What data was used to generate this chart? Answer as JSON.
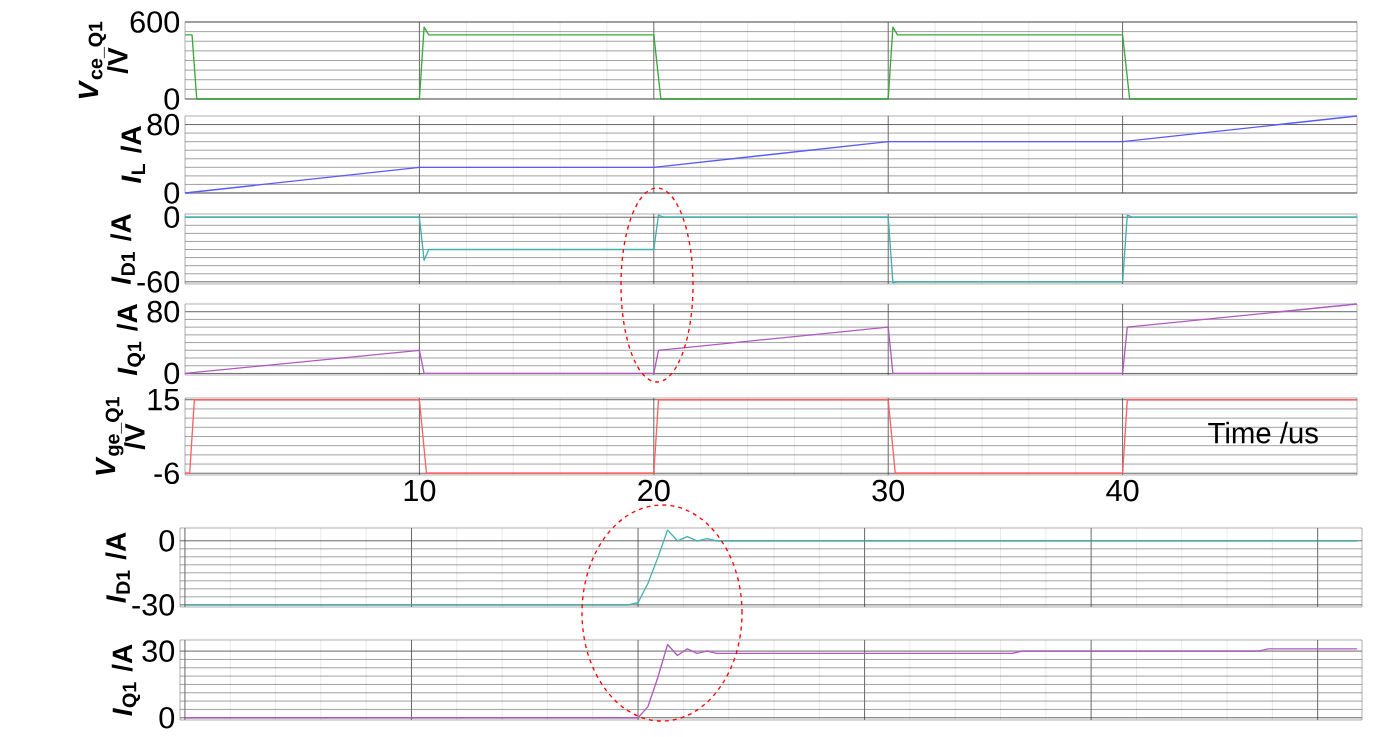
{
  "chart_data": [
    {
      "type": "line",
      "ylabel": "*V*$_{ce_Q1}$ /V",
      "xlim": [
        0,
        50
      ],
      "xticks": [
        10,
        20,
        30,
        40
      ],
      "ylim": [
        0,
        600
      ],
      "yticks": [
        0,
        600
      ],
      "tick_labels": "y",
      "grid": true,
      "series": [
        {
          "color": "#3aa83a",
          "x": [
            0,
            0.3,
            0.5,
            10,
            10.2,
            10.4,
            20,
            20.3,
            30,
            30.2,
            30.4,
            40,
            40.3,
            50
          ],
          "values": [
            500,
            500,
            0,
            0,
            560,
            500,
            500,
            0,
            0,
            560,
            500,
            500,
            0,
            0
          ]
        }
      ]
    },
    {
      "type": "line",
      "ylabel": "*I*$_{L}$ /A",
      "xlim": [
        0,
        50
      ],
      "xticks": [
        10,
        20,
        30,
        40
      ],
      "ylim": [
        0,
        90
      ],
      "yticks": [
        0,
        80
      ],
      "tick_labels": "y",
      "grid": true,
      "series": [
        {
          "color": "#5a5aff",
          "x": [
            0,
            10,
            20,
            30,
            40,
            50
          ],
          "values": [
            0,
            30,
            30,
            60,
            60,
            90
          ]
        }
      ]
    },
    {
      "type": "line",
      "ylabel": "*I*$_{D1}$ /A",
      "xlim": [
        0,
        50
      ],
      "xticks": [
        10,
        20,
        30,
        40
      ],
      "ylim": [
        -62,
        3
      ],
      "yticks": [
        -60,
        0
      ],
      "tick_labels": "y",
      "grid": true,
      "series": [
        {
          "color": "#40b0b0",
          "x": [
            0,
            10,
            10.2,
            10.4,
            20,
            20.2,
            20.4,
            30,
            30.2,
            30.4,
            40,
            40.2,
            40.4,
            50
          ],
          "values": [
            0,
            0,
            -40,
            -30,
            -30,
            2,
            0,
            0,
            -61,
            -60,
            -60,
            2,
            0,
            0
          ]
        }
      ]
    },
    {
      "type": "line",
      "ylabel": "*I*$_{Q1}$ /A",
      "xlim": [
        0,
        50
      ],
      "xticks": [
        10,
        20,
        30,
        40
      ],
      "ylim": [
        -2,
        90
      ],
      "yticks": [
        0,
        80
      ],
      "tick_labels": "y",
      "grid": true,
      "series": [
        {
          "color": "#b05ac0",
          "x": [
            0,
            10,
            10.2,
            20,
            20.2,
            30,
            30.2,
            40,
            40.2,
            50
          ],
          "values": [
            0,
            30,
            0,
            0,
            30,
            60,
            0,
            0,
            60,
            90
          ]
        }
      ]
    },
    {
      "type": "line",
      "ylabel": "*V*$_{ge_Q1}$ /V",
      "xlabel": "Time /us",
      "xlim": [
        0,
        50
      ],
      "xticks": [
        10,
        20,
        30,
        40
      ],
      "ylim": [
        -6.5,
        15.5
      ],
      "yticks": [
        -6,
        15
      ],
      "grid": true,
      "series": [
        {
          "color": "#ff6060",
          "x": [
            0,
            0.2,
            0.4,
            10,
            10.3,
            20,
            20.2,
            30,
            30.3,
            40,
            40.2,
            50
          ],
          "values": [
            -6,
            -6,
            15,
            15,
            -6,
            -6,
            15,
            15,
            -6,
            -6,
            15,
            15
          ]
        }
      ]
    },
    {
      "type": "line",
      "ylabel": "*I*$_{D1}$ /A",
      "ylim": [
        -31,
        6
      ],
      "yticks": [
        -30,
        0
      ],
      "tick_labels": "y",
      "grid": true,
      "categories": [
        null,
        null,
        null,
        null,
        null,
        null,
        null,
        null,
        null,
        null,
        null,
        null,
        null,
        null,
        null,
        null,
        null,
        null,
        null,
        null,
        null,
        null,
        null,
        null,
        null,
        null,
        null,
        null,
        null,
        null,
        null,
        null,
        null,
        null,
        null,
        null,
        null,
        null,
        null,
        null,
        null,
        null,
        null,
        null,
        null,
        null,
        null,
        null,
        null,
        null,
        null,
        null,
        null,
        null,
        null,
        null,
        null,
        null,
        null,
        null,
        null,
        null,
        null,
        null,
        null,
        null,
        null,
        null,
        null,
        null,
        null,
        null,
        null,
        null,
        null,
        null,
        null,
        null,
        null,
        null,
        null,
        null,
        null,
        null,
        null,
        null,
        null,
        null,
        null,
        null,
        null,
        null,
        null,
        null,
        null,
        null,
        null,
        null,
        null,
        null,
        null,
        null,
        null,
        null,
        null,
        null,
        null,
        null,
        null,
        null,
        null,
        null,
        null,
        null,
        null,
        null,
        null,
        null,
        null,
        null
      ],
      "series": [
        {
          "color": "#40b0b0",
          "values": [
            -30,
            -30,
            -30,
            -30,
            -30,
            -30,
            -30,
            -30,
            -30,
            -30,
            -30,
            -30,
            -30,
            -30,
            -30,
            -30,
            -30,
            -30,
            -30,
            -30,
            -30,
            -30,
            -30,
            -30,
            -30,
            -30,
            -30,
            -30,
            -30,
            -30,
            -30,
            -30,
            -30,
            -30,
            -30,
            -30,
            -30,
            -30,
            -30,
            -30,
            -30,
            -30,
            -30,
            -30,
            -30,
            -30,
            -29,
            -20,
            -8,
            5,
            0,
            2,
            0,
            1,
            0,
            0,
            0,
            0,
            0,
            0,
            0,
            0,
            0,
            0,
            0,
            0,
            0,
            0,
            0,
            0,
            0,
            0,
            0,
            0,
            0,
            0,
            0,
            0,
            0,
            0,
            0,
            0,
            0,
            0,
            0,
            0,
            0,
            0,
            0,
            0,
            0,
            0,
            0,
            0,
            0,
            0,
            0,
            0,
            0,
            0,
            0,
            0,
            0,
            0,
            0,
            0,
            0,
            0,
            0,
            0,
            0,
            0,
            0,
            0,
            0,
            0,
            0,
            0,
            0,
            0
          ]
        }
      ]
    },
    {
      "type": "line",
      "ylabel": "*I*$_{Q1}$ /A",
      "ylim": [
        -1,
        35
      ],
      "yticks": [
        0,
        30
      ],
      "tick_labels": "y",
      "grid": true,
      "categories": [
        null,
        null,
        null,
        null,
        null,
        null,
        null,
        null,
        null,
        null,
        null,
        null,
        null,
        null,
        null,
        null,
        null,
        null,
        null,
        null,
        null,
        null,
        null,
        null,
        null,
        null,
        null,
        null,
        null,
        null,
        null,
        null,
        null,
        null,
        null,
        null,
        null,
        null,
        null,
        null,
        null,
        null,
        null,
        null,
        null,
        null,
        null,
        null,
        null,
        null,
        null,
        null,
        null,
        null,
        null,
        null,
        null,
        null,
        null,
        null,
        null,
        null,
        null,
        null,
        null,
        null,
        null,
        null,
        null,
        null,
        null,
        null,
        null,
        null,
        null,
        null,
        null,
        null,
        null,
        null,
        null,
        null,
        null,
        null,
        null,
        null,
        null,
        null,
        null,
        null,
        null,
        null,
        null,
        null,
        null,
        null,
        null,
        null,
        null,
        null,
        null,
        null,
        null,
        null,
        null,
        null,
        null,
        null,
        null,
        null,
        null,
        null,
        null,
        null,
        null,
        null,
        null,
        null,
        null,
        null
      ],
      "series": [
        {
          "color": "#b05ac0",
          "values": [
            0,
            0,
            0,
            0,
            0,
            0,
            0,
            0,
            0,
            0,
            0,
            0,
            0,
            0,
            0,
            0,
            0,
            0,
            0,
            0,
            0,
            0,
            0,
            0,
            0,
            0,
            0,
            0,
            0,
            0,
            0,
            0,
            0,
            0,
            0,
            0,
            0,
            0,
            0,
            0,
            0,
            0,
            0,
            0,
            0,
            0,
            0,
            5,
            18,
            33,
            28,
            31,
            29,
            30,
            29,
            29,
            29,
            29,
            29,
            29,
            29,
            29,
            29,
            29,
            29,
            29,
            29,
            29,
            29,
            29,
            29,
            29,
            29,
            29,
            29,
            29,
            29,
            29,
            29,
            29,
            29,
            29,
            29,
            29,
            29,
            30,
            30,
            30,
            30,
            30,
            30,
            30,
            30,
            30,
            30,
            30,
            30,
            30,
            30,
            30,
            30,
            30,
            30,
            30,
            30,
            30,
            30,
            30,
            30,
            30,
            31,
            31,
            31,
            31,
            31,
            31,
            31,
            31,
            31,
            31
          ]
        }
      ]
    }
  ]
}
